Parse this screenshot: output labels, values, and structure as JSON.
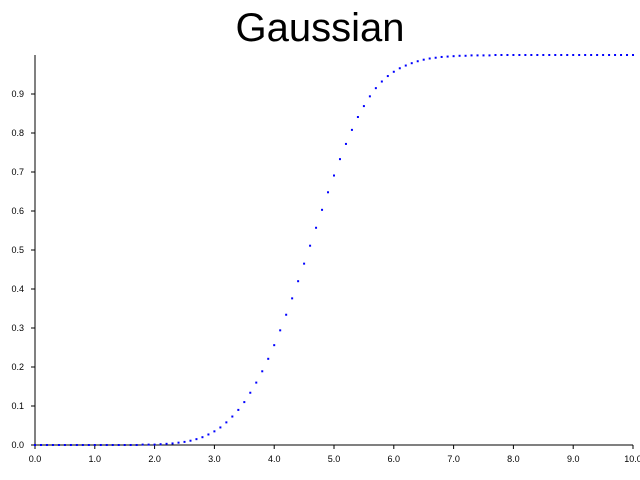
{
  "chart_data": {
    "type": "scatter",
    "title": "Gaussian",
    "xlabel": "",
    "ylabel": "",
    "xlim": [
      0,
      10
    ],
    "ylim": [
      0,
      1
    ],
    "x_ticks": [
      "0.0",
      "1.0",
      "2.0",
      "3.0",
      "4.0",
      "5.0",
      "6.0",
      "7.0",
      "8.0",
      "9.0",
      "10.0"
    ],
    "y_ticks": [
      "0.0",
      "0.1",
      "0.2",
      "0.3",
      "0.4",
      "0.5",
      "0.6",
      "0.7",
      "0.8",
      "0.9"
    ],
    "grid": false,
    "marker_color": "#0000ff",
    "series": [
      {
        "x": [
          0.0,
          0.1,
          0.2,
          0.3,
          0.4,
          0.5,
          0.6,
          0.7,
          0.8,
          0.9,
          1.0,
          1.1,
          1.2,
          1.3,
          1.4,
          1.5,
          1.6,
          1.7,
          1.8,
          1.9,
          2.0,
          2.1,
          2.2,
          2.3,
          2.4,
          2.5,
          2.6,
          2.7,
          2.8,
          2.9,
          3.0,
          3.1,
          3.2,
          3.3,
          3.4,
          3.5,
          3.6,
          3.7,
          3.8,
          3.9,
          4.0,
          4.1,
          4.2,
          4.3,
          4.4,
          4.5,
          4.6,
          4.7,
          4.8,
          4.9,
          5.0,
          5.1,
          5.2,
          5.3,
          5.4,
          5.5,
          5.6,
          5.7,
          5.8,
          5.9,
          6.0,
          6.1,
          6.2,
          6.3,
          6.4,
          6.5,
          6.6,
          6.7,
          6.8,
          6.9,
          7.0,
          7.1,
          7.2,
          7.3,
          7.4,
          7.5,
          7.6,
          7.7,
          7.8,
          7.9,
          8.0,
          8.1,
          8.2,
          8.3,
          8.4,
          8.5,
          8.6,
          8.7,
          8.8,
          8.9,
          9.0,
          9.1,
          9.2,
          9.3,
          9.4,
          9.5,
          9.6,
          9.7,
          9.8,
          9.9,
          10.0
        ],
        "y": [
          0.0,
          0.0,
          0.0,
          0.0,
          0.0,
          0.0,
          0.0,
          0.0,
          0.0,
          0.0,
          0.0,
          0.0,
          0.0,
          0.0,
          0.0,
          0.0,
          0.0,
          0.0,
          0.001,
          0.001,
          0.001,
          0.002,
          0.003,
          0.004,
          0.006,
          0.008,
          0.011,
          0.015,
          0.02,
          0.027,
          0.035,
          0.045,
          0.058,
          0.073,
          0.09,
          0.11,
          0.134,
          0.16,
          0.189,
          0.221,
          0.256,
          0.294,
          0.334,
          0.376,
          0.42,
          0.465,
          0.511,
          0.557,
          0.603,
          0.648,
          0.691,
          0.733,
          0.772,
          0.808,
          0.841,
          0.869,
          0.894,
          0.915,
          0.932,
          0.946,
          0.957,
          0.966,
          0.973,
          0.979,
          0.984,
          0.988,
          0.991,
          0.993,
          0.995,
          0.996,
          0.997,
          0.998,
          0.998,
          0.999,
          0.999,
          0.999,
          0.999,
          1.0,
          1.0,
          1.0,
          1.0,
          1.0,
          1.0,
          1.0,
          1.0,
          1.0,
          1.0,
          1.0,
          1.0,
          1.0,
          1.0,
          1.0,
          1.0,
          1.0,
          1.0,
          1.0,
          1.0,
          1.0,
          1.0,
          1.0,
          1.0
        ]
      }
    ]
  }
}
